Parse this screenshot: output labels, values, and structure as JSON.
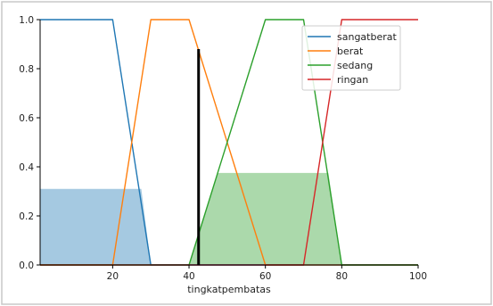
{
  "chart_data": {
    "type": "line",
    "title": "",
    "xlabel": "tingkatpembatas",
    "ylabel": "",
    "xlim": [
      1,
      100
    ],
    "ylim": [
      0,
      1
    ],
    "x_ticks": [
      20,
      40,
      60,
      80,
      100
    ],
    "y_ticks": [
      0.0,
      0.2,
      0.4,
      0.6,
      0.8,
      1.0
    ],
    "x_tick_labels": [
      "20",
      "40",
      "60",
      "80",
      "100"
    ],
    "y_tick_labels": [
      "0.0",
      "0.2",
      "0.4",
      "0.6",
      "0.8",
      "1.0"
    ],
    "grid": false,
    "legend_position": "top-right",
    "series": [
      {
        "name": "sangatberat",
        "color": "#1f77b4",
        "x": [
          1,
          20,
          30,
          100
        ],
        "y": [
          1,
          1,
          0,
          0
        ]
      },
      {
        "name": "berat",
        "color": "#ff7f0e",
        "x": [
          1,
          20,
          30,
          40,
          60,
          100
        ],
        "y": [
          0,
          0,
          1,
          1,
          0,
          0
        ]
      },
      {
        "name": "sedang",
        "color": "#2ca02c",
        "x": [
          1,
          40,
          60,
          70,
          80,
          100
        ],
        "y": [
          0,
          0,
          1,
          1,
          0,
          0
        ]
      },
      {
        "name": "ringan",
        "color": "#d62728",
        "x": [
          1,
          70,
          80,
          100
        ],
        "y": [
          0,
          0,
          1,
          1
        ]
      }
    ],
    "filled_regions": [
      {
        "series": "sangatberat",
        "color": "#1f77b4",
        "x": [
          1,
          27.5,
          30
        ],
        "y": [
          0.31,
          0.31,
          0
        ]
      },
      {
        "series": "sedang",
        "color": "#2ca02c",
        "x": [
          40,
          47.5,
          76.5,
          80
        ],
        "y": [
          0,
          0.375,
          0.375,
          0
        ]
      }
    ],
    "vertical_line": {
      "x": 42.5,
      "y": 0.88,
      "color": "#000000"
    }
  }
}
